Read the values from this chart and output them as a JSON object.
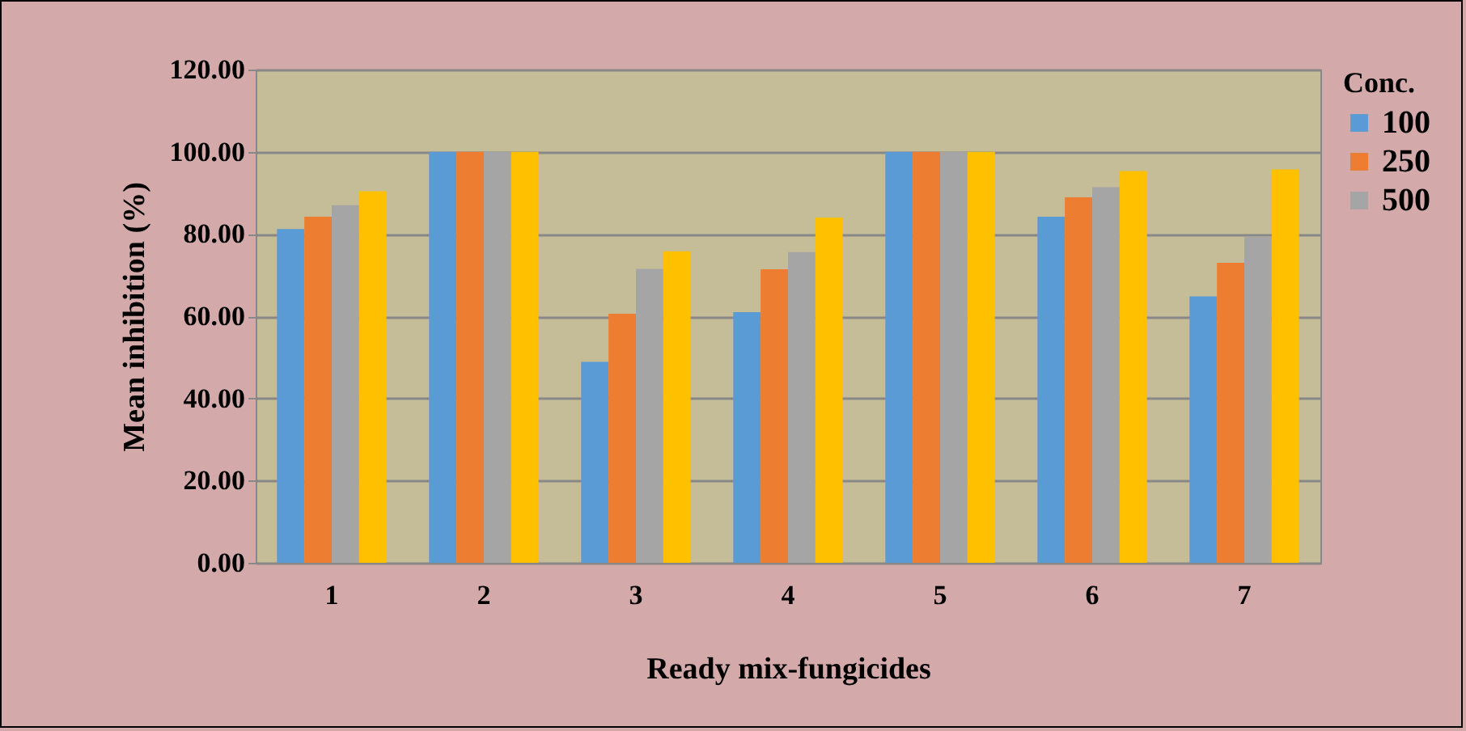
{
  "chart_data": {
    "type": "bar",
    "xlabel": "Ready mix-fungicides",
    "ylabel": "Mean inhibition (%)",
    "legend_title": "Conc.",
    "legend": "right",
    "grid": "y",
    "categories": [
      "1",
      "2",
      "3",
      "4",
      "5",
      "6",
      "7"
    ],
    "series": [
      {
        "name": "100",
        "color": "#5b9bd5",
        "values": [
          81.2,
          100,
          48.9,
          61.0,
          100,
          84.2,
          64.8
        ]
      },
      {
        "name": "250",
        "color": "#ed7d31",
        "values": [
          84.2,
          100,
          60.6,
          71.4,
          100,
          88.9,
          73.0
        ]
      },
      {
        "name": "500",
        "color": "#a5a5a5",
        "values": [
          87.0,
          100,
          71.5,
          75.6,
          100,
          91.4,
          79.4
        ]
      },
      {
        "color": "#ffc000",
        "values": [
          90.4,
          100,
          75.8,
          84.0,
          100,
          95.3,
          95.7
        ]
      }
    ],
    "ylim": [
      0,
      120
    ],
    "yticks": [
      {
        "value": 0,
        "label": "0.00"
      },
      {
        "value": 20,
        "label": "20.00"
      },
      {
        "value": 40,
        "label": "40.00"
      },
      {
        "value": 60,
        "label": "60.00"
      },
      {
        "value": 80,
        "label": "80.00"
      },
      {
        "value": 100,
        "label": "100.00"
      },
      {
        "value": 120,
        "label": "120.00"
      }
    ]
  }
}
